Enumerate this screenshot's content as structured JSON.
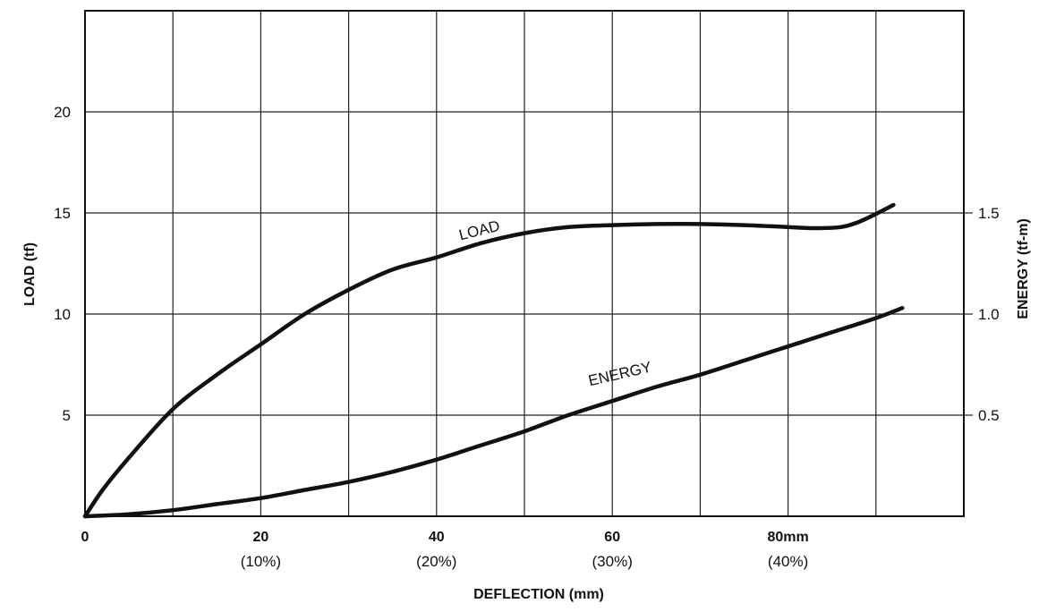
{
  "chart_data": {
    "type": "line",
    "title": "",
    "xlabel": "DEFLECTION (mm)",
    "ylabel": "LOAD (tf)",
    "y2label": "ENERGY (tf-m)",
    "xlim": [
      0,
      100
    ],
    "ylim": [
      0,
      25
    ],
    "y2lim": [
      0,
      2.5
    ],
    "grid": true,
    "x_ticks": [
      {
        "value": 0,
        "label": "0",
        "sublabel": ""
      },
      {
        "value": 20,
        "label": "20",
        "sublabel": "(10%)"
      },
      {
        "value": 40,
        "label": "40",
        "sublabel": "(20%)"
      },
      {
        "value": 60,
        "label": "60",
        "sublabel": "(30%)"
      },
      {
        "value": 80,
        "label": "80mm",
        "sublabel": "(40%)"
      }
    ],
    "x_grid": [
      10,
      20,
      30,
      40,
      50,
      60,
      70,
      80,
      90
    ],
    "y_ticks": [
      {
        "value": 5,
        "label": "5"
      },
      {
        "value": 10,
        "label": "10"
      },
      {
        "value": 15,
        "label": "15"
      },
      {
        "value": 20,
        "label": "20"
      }
    ],
    "y_grid": [
      5,
      10,
      15,
      20
    ],
    "y2_ticks": [
      {
        "value": 0.5,
        "label": "0.5"
      },
      {
        "value": 1.0,
        "label": "1.0"
      },
      {
        "value": 1.5,
        "label": "1.5"
      }
    ],
    "series": [
      {
        "name": "LOAD",
        "axis": "left",
        "label_at": {
          "x": 45,
          "y": 13.9,
          "angle": -14
        },
        "x": [
          0,
          2,
          5,
          10,
          15,
          20,
          25,
          30,
          35,
          40,
          45,
          50,
          55,
          60,
          65,
          70,
          75,
          80,
          83,
          86,
          88,
          90,
          92
        ],
        "y": [
          0,
          1.3,
          2.9,
          5.3,
          7.0,
          8.5,
          10.0,
          11.2,
          12.2,
          12.8,
          13.5,
          14.0,
          14.3,
          14.4,
          14.45,
          14.45,
          14.4,
          14.3,
          14.25,
          14.3,
          14.55,
          14.95,
          15.4
        ]
      },
      {
        "name": "ENERGY",
        "axis": "right",
        "label_at": {
          "x": 61,
          "y": 0.68,
          "angle": -13
        },
        "x": [
          0,
          5,
          10,
          15,
          20,
          25,
          30,
          35,
          40,
          45,
          50,
          55,
          60,
          65,
          70,
          75,
          80,
          85,
          90,
          93
        ],
        "y": [
          0,
          0.01,
          0.03,
          0.06,
          0.09,
          0.13,
          0.17,
          0.22,
          0.28,
          0.35,
          0.42,
          0.5,
          0.57,
          0.64,
          0.7,
          0.77,
          0.84,
          0.91,
          0.98,
          1.03
        ]
      }
    ]
  }
}
